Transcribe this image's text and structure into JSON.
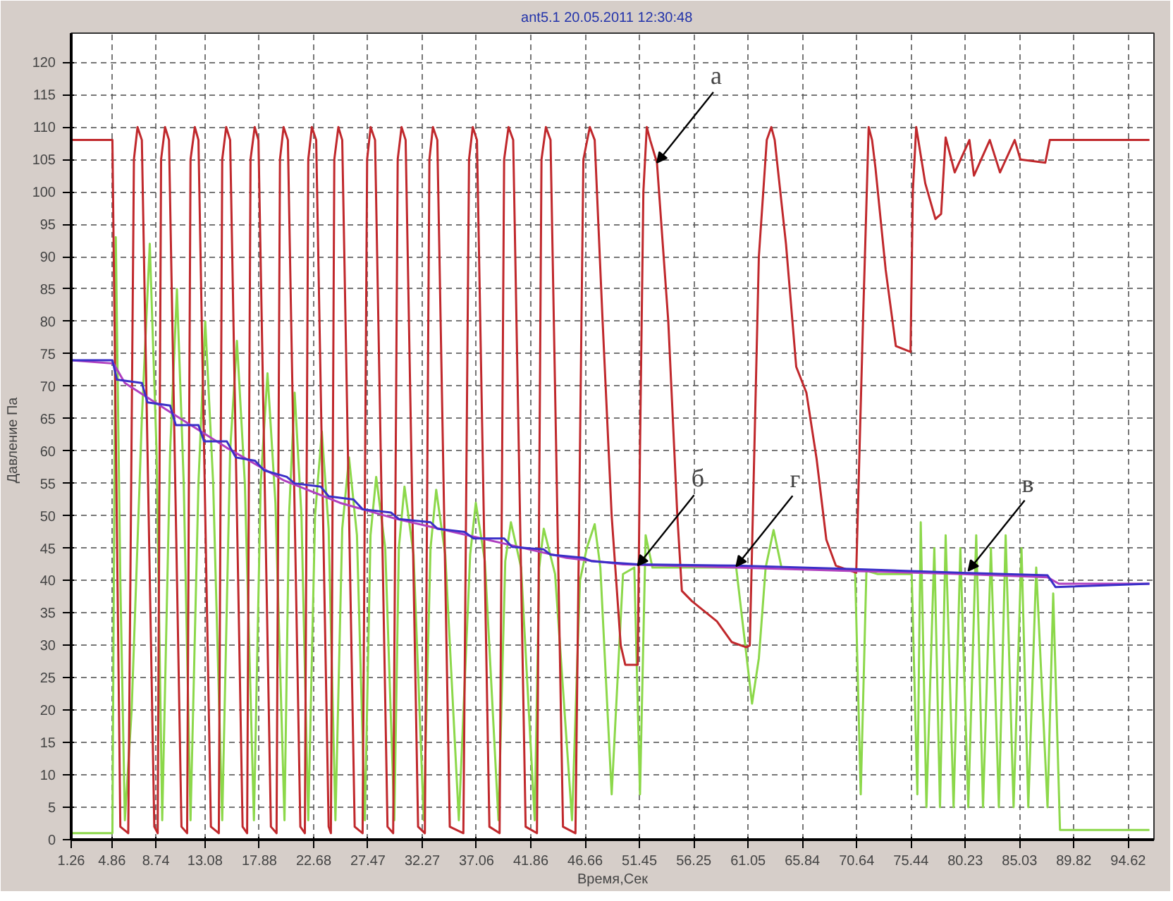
{
  "chart_data": {
    "type": "line",
    "title": "ant5.1    20.05.2011 12:30:48",
    "xlabel": "Время,Сек",
    "ylabel": "Давление   Па",
    "xlim": [
      1.26,
      96.9
    ],
    "ylim": [
      0,
      124.5
    ],
    "xticks": [
      1.26,
      4.86,
      8.74,
      13.08,
      17.88,
      22.68,
      27.47,
      32.27,
      37.06,
      41.86,
      46.66,
      51.45,
      56.25,
      61.05,
      65.84,
      70.64,
      75.44,
      80.23,
      85.03,
      89.82,
      94.62
    ],
    "yticks": [
      0,
      5,
      10,
      15,
      20,
      25,
      30,
      35,
      40,
      45,
      50,
      55,
      60,
      65,
      70,
      75,
      80,
      85,
      90,
      95,
      100,
      105,
      110,
      115,
      120
    ],
    "grid": true,
    "series": [
      {
        "color": "#8cd84a",
        "x": [
          1.26,
          4.9,
          5.2,
          5.6,
          6.0,
          6.6,
          7.5,
          8.2,
          8.8,
          9.3,
          10.0,
          10.6,
          11.2,
          11.8,
          12.5,
          13.1,
          13.8,
          14.6,
          15.3,
          15.9,
          16.6,
          17.4,
          18.0,
          18.6,
          19.3,
          20.1,
          20.5,
          21.0,
          21.6,
          22.2,
          22.8,
          23.4,
          24.0,
          24.6,
          25.2,
          25.8,
          26.5,
          27.2,
          27.7,
          28.2,
          29.0,
          29.8,
          30.2,
          30.7,
          31.5,
          32.4,
          33.0,
          33.5,
          34.3,
          35.5,
          36.5,
          37.0,
          37.8,
          39.0,
          39.6,
          40.1,
          41.0,
          42.2,
          42.6,
          43.0,
          44.0,
          45.5,
          46.2,
          46.8,
          47.5,
          48.0,
          49.0,
          50.0,
          51.0,
          51.5,
          52.0,
          52.6,
          60.0,
          61.4,
          62.0,
          62.6,
          63.3,
          64.0,
          70.5,
          71.0,
          71.5,
          72.5,
          75.5,
          76.0,
          76.3,
          76.8,
          77.5,
          78.0,
          78.5,
          79.2,
          79.8,
          80.5,
          81.2,
          81.8,
          82.5,
          83.2,
          83.8,
          84.5,
          85.2,
          85.8,
          86.5,
          87.5,
          88.0,
          88.6,
          96.5
        ],
        "values": [
          1,
          1,
          93,
          40,
          3,
          20,
          65,
          92,
          60,
          3,
          60,
          85,
          55,
          3,
          55,
          80,
          55,
          3,
          60,
          77,
          55,
          3,
          55,
          72,
          52,
          3,
          50,
          69,
          50,
          3,
          50,
          63,
          48,
          3,
          48,
          59,
          47,
          3,
          47,
          56,
          45,
          3,
          45,
          54.5,
          44,
          3,
          45,
          54,
          44,
          3,
          44,
          52,
          43,
          3,
          43,
          49,
          42,
          3,
          42,
          48,
          41,
          3,
          40,
          45,
          48.7,
          42,
          7,
          41,
          42,
          7,
          47,
          42,
          42,
          21,
          28,
          42,
          47.8,
          42,
          41.5,
          7,
          41.5,
          41,
          41,
          7,
          49,
          5,
          45,
          5,
          47,
          5,
          45,
          5,
          47,
          5,
          45,
          5,
          47,
          5,
          45,
          5,
          42,
          5,
          38,
          1.5,
          1.5
        ]
      },
      {
        "color": "#c0282c",
        "x": [
          1.26,
          4.9,
          5.6,
          6.3,
          6.8,
          7.12,
          7.5,
          8.0,
          8.6,
          8.9,
          9.2,
          9.55,
          9.9,
          10.4,
          11.0,
          11.5,
          11.8,
          12.18,
          12.5,
          13.0,
          13.6,
          14.3,
          14.6,
          14.95,
          15.3,
          15.8,
          16.4,
          16.8,
          17.1,
          17.47,
          17.8,
          18.3,
          18.9,
          19.4,
          19.7,
          20.02,
          20.4,
          20.9,
          21.5,
          21.9,
          22.2,
          22.52,
          22.9,
          23.4,
          24.0,
          24.2,
          24.5,
          24.86,
          25.2,
          25.7,
          26.3,
          27.0,
          27.4,
          27.71,
          28.1,
          28.6,
          29.2,
          29.7,
          30.1,
          30.44,
          30.8,
          31.3,
          31.9,
          32.5,
          32.9,
          33.21,
          33.6,
          34.1,
          34.7,
          35.9,
          36.4,
          36.73,
          37.1,
          37.6,
          38.2,
          39.1,
          39.5,
          39.89,
          40.3,
          40.8,
          41.4,
          42.4,
          42.8,
          43.19,
          43.6,
          44.1,
          44.7,
          45.8,
          46.5,
          47.07,
          47.5,
          48.2,
          49.0,
          49.8,
          50.2,
          51.3,
          51.5,
          51.8,
          52.1,
          52.4,
          53.0,
          54.0,
          54.8,
          55.2,
          56.1,
          58.3,
          59.6,
          60.9,
          61.2,
          62.0,
          62.7,
          63.1,
          63.4,
          64.4,
          65.3,
          66.2,
          67.1,
          67.96,
          68.8,
          70.6,
          71.2,
          71.7,
          72.0,
          72.3,
          73.2,
          74.1,
          75.4,
          75.6,
          75.9,
          76.7,
          77.6,
          78.1,
          78.5,
          79.3,
          80.6,
          81.0,
          82.4,
          83.3,
          84.6,
          85.1,
          87.3,
          87.7,
          96.5
        ],
        "values": [
          108,
          108,
          2,
          1,
          105,
          110,
          108,
          60,
          2,
          1,
          105,
          110,
          108,
          60,
          2,
          1,
          105,
          110,
          108,
          60,
          2,
          1,
          105,
          110,
          108,
          60,
          2,
          1,
          105,
          110,
          108,
          60,
          2,
          1,
          105,
          110,
          108,
          60,
          2,
          1,
          105,
          110,
          108,
          60,
          2,
          1,
          105,
          110,
          108,
          60,
          2,
          1,
          105,
          110,
          108,
          60,
          2,
          1,
          105,
          110,
          108,
          60,
          2,
          1,
          105,
          110,
          108,
          60,
          2,
          1,
          105,
          110,
          108,
          60,
          2,
          1,
          105,
          110,
          108,
          60,
          2,
          1,
          105,
          110,
          108,
          60,
          2,
          1,
          105,
          110,
          108,
          80,
          50,
          30,
          27,
          27,
          60,
          100,
          110,
          108,
          104.5,
          80,
          50,
          38.4,
          36.8,
          33.7,
          30.5,
          29.7,
          30,
          90,
          108,
          110,
          108,
          91.9,
          73,
          69,
          58.8,
          46.3,
          42.3,
          41.2,
          80,
          110,
          108,
          103.7,
          88,
          76.2,
          75.3,
          100,
          110,
          101.3,
          95.8,
          96.6,
          108.4,
          103,
          108,
          102.5,
          108,
          103,
          108,
          105,
          104.5,
          108,
          108
        ]
      },
      {
        "color": "#b040c0",
        "x": [
          1.26,
          5.0,
          6.0,
          10.0,
          15.0,
          20.0,
          25.0,
          30.0,
          35.0,
          40.0,
          45.0,
          50.0,
          60.0,
          70.0,
          80.0,
          87.5,
          88.5,
          96.5
        ],
        "values": [
          74,
          73.5,
          70.5,
          66,
          60.5,
          55.5,
          52,
          49.5,
          47.5,
          45.5,
          43.5,
          42.5,
          42,
          41.5,
          41,
          40.5,
          39.5,
          39.5
        ]
      },
      {
        "color": "#3a2fc8",
        "x": [
          1.26,
          4.9,
          5.3,
          7.5,
          8.0,
          10.0,
          10.5,
          12.5,
          13.0,
          15.0,
          15.8,
          17.5,
          18.3,
          20.3,
          21.0,
          23.3,
          24.0,
          26.2,
          27.0,
          29.5,
          30.2,
          33.0,
          33.6,
          36.0,
          36.8,
          39.5,
          40.2,
          43.0,
          43.6,
          46.5,
          47.2,
          51.3,
          60.0,
          70.0,
          80.0,
          87.5,
          88.2,
          96.5
        ],
        "values": [
          74,
          74,
          71,
          70.5,
          67.5,
          67,
          64,
          64,
          61.5,
          61.5,
          59,
          58.5,
          57,
          56,
          55,
          54.5,
          53,
          52.5,
          51,
          50.5,
          49.5,
          49,
          48,
          47.5,
          46.5,
          46.5,
          45.2,
          44.8,
          44,
          43.5,
          43,
          42.5,
          42.3,
          41.8,
          41.2,
          40.8,
          39,
          39.5
        ]
      }
    ],
    "annotations": [
      {
        "text": "а",
        "x": 53.0,
        "y": 104.5
      },
      {
        "text": "б",
        "x": 51.3,
        "y": 42.3
      },
      {
        "text": "г",
        "x": 60.0,
        "y": 42.2
      },
      {
        "text": "в",
        "x": 80.5,
        "y": 41.5
      }
    ]
  }
}
